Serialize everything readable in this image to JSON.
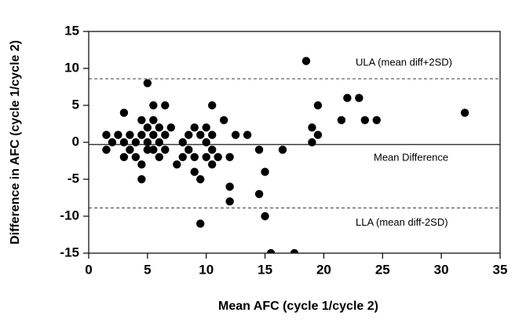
{
  "chart_data": {
    "type": "scatter",
    "xlabel": "Mean AFC (cycle 1/cycle 2)",
    "ylabel": "Difference in AFC (cycle 1/cycle 2)",
    "x": [
      1.5,
      1.5,
      2,
      2.5,
      3,
      3,
      3,
      3.5,
      3.5,
      4,
      4,
      4.5,
      4.5,
      4.5,
      4.5,
      5,
      5,
      5,
      5,
      5.5,
      5.5,
      5.5,
      5.5,
      6,
      6,
      6,
      6.5,
      6.5,
      6.5,
      7,
      7.5,
      8,
      8,
      8.5,
      8.5,
      9,
      9,
      9,
      9.5,
      9.5,
      9.5,
      10,
      10,
      10,
      10.5,
      10.5,
      10.5,
      10.5,
      11,
      11.5,
      12,
      12,
      12,
      12.5,
      13.5,
      14.5,
      14.5,
      15,
      15,
      15.5,
      16.5,
      17.5,
      18.5,
      19,
      19,
      19.5,
      19.5,
      21.5,
      22,
      23,
      23.5,
      24.5,
      32
    ],
    "values": [
      1,
      -1,
      0,
      1,
      0,
      -2,
      4,
      1,
      -1,
      0,
      -2,
      1,
      3,
      -3,
      -5,
      8,
      2,
      0,
      -1,
      5,
      3,
      1,
      -1,
      2,
      0,
      -2,
      5,
      1,
      -1,
      2,
      -3,
      0,
      -2,
      1,
      -1,
      2,
      -2,
      -4,
      1,
      -5,
      -11,
      2,
      0,
      -2,
      5,
      1,
      -1,
      -3,
      -2,
      3,
      -2,
      -6,
      -8,
      1,
      1,
      -1,
      -7,
      -4,
      -10,
      -15,
      -1,
      -15,
      11,
      2,
      0,
      1,
      5,
      3,
      6,
      6,
      3,
      3,
      4
    ],
    "color": "#000000",
    "xlim": [
      0,
      35
    ],
    "xticks": [
      0,
      5,
      10,
      15,
      20,
      25,
      30,
      35
    ],
    "ylim": [
      -15,
      15
    ],
    "yticks": [
      15,
      10,
      5,
      0,
      -5,
      -10,
      -15
    ],
    "reference_lines": [
      {
        "label": "ULA (mean diff+2SD)",
        "value": 8.6,
        "style": "dashed"
      },
      {
        "label": "Mean Difference",
        "value": -0.3,
        "style": "solid"
      },
      {
        "label": "LLA (mean diff-2SD)",
        "value": -8.9,
        "style": "dashed"
      }
    ]
  }
}
